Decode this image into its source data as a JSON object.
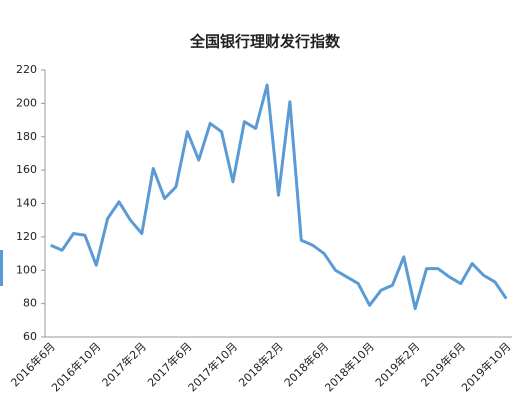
{
  "chart_data": {
    "type": "line",
    "title": "全国银行理财发行指数",
    "categories": [
      "2016年6月",
      null,
      null,
      null,
      "2016年10月",
      null,
      null,
      null,
      "2017年2月",
      null,
      null,
      null,
      "2017年6月",
      null,
      null,
      null,
      "2017年10月",
      null,
      null,
      null,
      "2018年2月",
      null,
      null,
      null,
      "2018年6月",
      null,
      null,
      null,
      "2018年10月",
      null,
      null,
      null,
      "2019年2月",
      null,
      null,
      null,
      "2019年6月",
      null,
      null,
      null,
      "2019年10月"
    ],
    "values": [
      115,
      112,
      122,
      121,
      103,
      131,
      141,
      130,
      122,
      161,
      143,
      150,
      183,
      166,
      188,
      183,
      153,
      189,
      185,
      211,
      145,
      201,
      118,
      115,
      110,
      100,
      96,
      92,
      79,
      88,
      91,
      108,
      77,
      101,
      101,
      96,
      92,
      104,
      97,
      93,
      83
    ],
    "color": "#5b9bd5",
    "ylim": [
      60,
      220
    ],
    "yticks": [
      60,
      80,
      100,
      120,
      140,
      160,
      180,
      200,
      220
    ],
    "grid": false
  }
}
